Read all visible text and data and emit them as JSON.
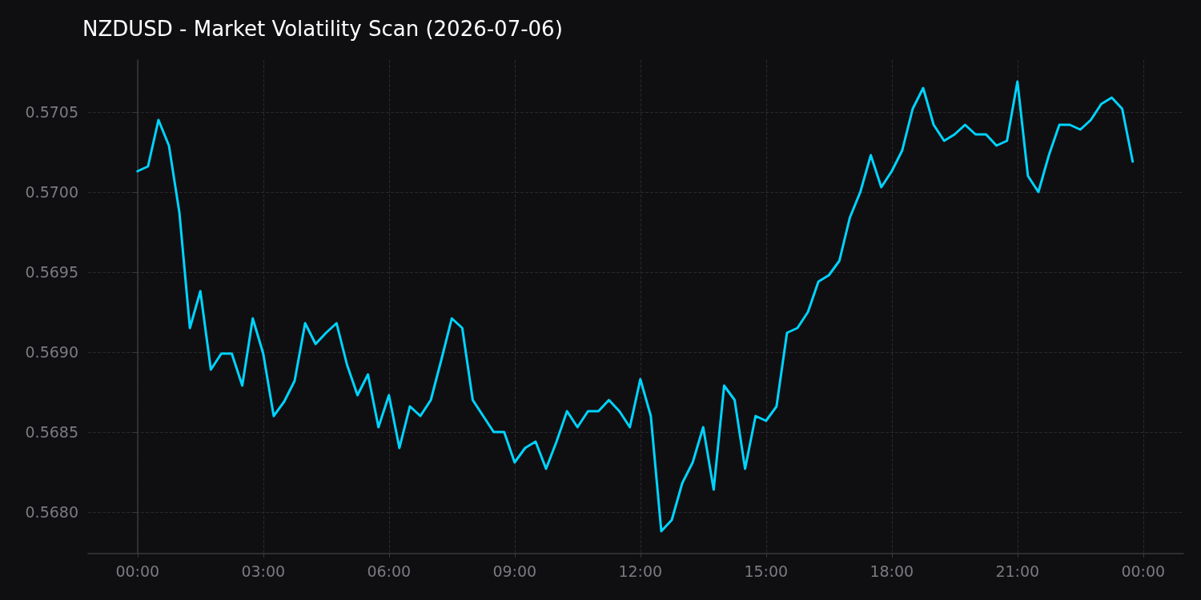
{
  "chart_data": {
    "type": "line",
    "title": "NZDUSD - Market Volatility Scan (2026-07-06)",
    "x": [
      0,
      0.25,
      0.5,
      0.75,
      1,
      1.25,
      1.5,
      1.75,
      2,
      2.25,
      2.5,
      2.75,
      3,
      3.25,
      3.5,
      3.75,
      4,
      4.25,
      4.5,
      4.75,
      5,
      5.25,
      5.5,
      5.75,
      6,
      6.25,
      6.5,
      6.75,
      7,
      7.25,
      7.5,
      7.75,
      8,
      8.25,
      8.5,
      8.75,
      9,
      9.25,
      9.5,
      9.75,
      10,
      10.25,
      10.5,
      10.75,
      11,
      11.25,
      11.5,
      11.75,
      12,
      12.25,
      12.5,
      12.75,
      13,
      13.25,
      13.5,
      13.75,
      14,
      14.25,
      14.5,
      14.75,
      15,
      15.25,
      15.5,
      15.75,
      16,
      16.25,
      16.5,
      16.75,
      17,
      17.25,
      17.5,
      17.75,
      18,
      18.25,
      18.5,
      18.75,
      19,
      19.25,
      19.5,
      19.75,
      20,
      20.25,
      20.5,
      20.75,
      21,
      21.25,
      21.5,
      21.75,
      22,
      22.25,
      22.5,
      22.75,
      23,
      23.25,
      23.5,
      23.75
    ],
    "series": [
      {
        "color": "#00d4ff",
        "values": [
          0.57013,
          0.57016,
          0.57045,
          0.57029,
          0.56987,
          0.56915,
          0.56938,
          0.56889,
          0.56899,
          0.56899,
          0.56879,
          0.56921,
          0.56899,
          0.5686,
          0.56869,
          0.56882,
          0.56918,
          0.56905,
          0.56912,
          0.56918,
          0.56892,
          0.56873,
          0.56886,
          0.56853,
          0.56873,
          0.5684,
          0.56866,
          0.5686,
          0.5687,
          0.56895,
          0.56921,
          0.56915,
          0.5687,
          0.5686,
          0.5685,
          0.5685,
          0.56831,
          0.5684,
          0.56844,
          0.56827,
          0.56844,
          0.56863,
          0.56853,
          0.56863,
          0.56863,
          0.5687,
          0.56863,
          0.56853,
          0.56883,
          0.5686,
          0.56788,
          0.56795,
          0.56818,
          0.56831,
          0.56853,
          0.56814,
          0.56879,
          0.5687,
          0.56827,
          0.5686,
          0.56857,
          0.56866,
          0.56912,
          0.56915,
          0.56925,
          0.56944,
          0.56948,
          0.56957,
          0.56984,
          0.57,
          0.57023,
          0.57003,
          0.57013,
          0.57026,
          0.57052,
          0.57065,
          0.57042,
          0.57032,
          0.57036,
          0.57042,
          0.57036,
          0.57036,
          0.57029,
          0.57032,
          0.57069,
          0.5701,
          0.57,
          0.57023,
          0.57042,
          0.57042,
          0.57039,
          0.57045,
          0.57055,
          0.57059,
          0.57052,
          0.57019
        ]
      }
    ],
    "xlim": [
      -1.18,
      24.96
    ],
    "xticks": [
      {
        "value": 0,
        "label": "00:00"
      },
      {
        "value": 3,
        "label": "03:00"
      },
      {
        "value": 6,
        "label": "06:00"
      },
      {
        "value": 9,
        "label": "09:00"
      },
      {
        "value": 12,
        "label": "12:00"
      },
      {
        "value": 15,
        "label": "15:00"
      },
      {
        "value": 18,
        "label": "18:00"
      },
      {
        "value": 21,
        "label": "21:00"
      },
      {
        "value": 24,
        "label": "00:00"
      }
    ],
    "ylim": [
      0.56774,
      0.570825
    ],
    "yticks": [
      {
        "value": 0.568,
        "label": "0.5680"
      },
      {
        "value": 0.5685,
        "label": "0.5685"
      },
      {
        "value": 0.569,
        "label": "0.5690"
      },
      {
        "value": 0.5695,
        "label": "0.5695"
      },
      {
        "value": 0.57,
        "label": "0.5700"
      },
      {
        "value": 0.5705,
        "label": "0.5705"
      }
    ],
    "grid": true,
    "marker": "none",
    "line_style": "solid"
  }
}
